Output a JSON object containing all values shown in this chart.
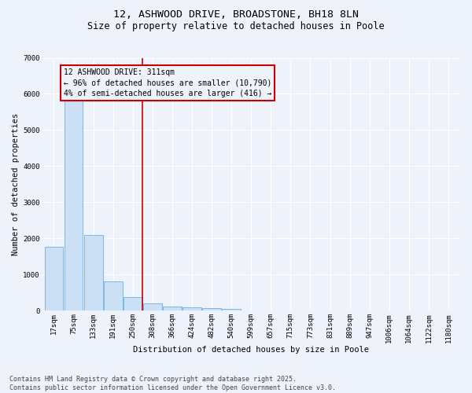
{
  "title": "12, ASHWOOD DRIVE, BROADSTONE, BH18 8LN",
  "subtitle": "Size of property relative to detached houses in Poole",
  "xlabel": "Distribution of detached houses by size in Poole",
  "ylabel": "Number of detached properties",
  "categories": [
    "17sqm",
    "75sqm",
    "133sqm",
    "191sqm",
    "250sqm",
    "308sqm",
    "366sqm",
    "424sqm",
    "482sqm",
    "540sqm",
    "599sqm",
    "657sqm",
    "715sqm",
    "773sqm",
    "831sqm",
    "889sqm",
    "947sqm",
    "1006sqm",
    "1064sqm",
    "1122sqm",
    "1180sqm"
  ],
  "values": [
    1780,
    5820,
    2100,
    820,
    380,
    210,
    120,
    90,
    80,
    55,
    0,
    0,
    0,
    0,
    0,
    0,
    0,
    0,
    0,
    0,
    0
  ],
  "bar_color": "#cce0f5",
  "bar_edge_color": "#7ab8e8",
  "vline_x": 4.5,
  "vline_color": "#cc0000",
  "annotation_text": "12 ASHWOOD DRIVE: 311sqm\n← 96% of detached houses are smaller (10,790)\n4% of semi-detached houses are larger (416) →",
  "annotation_box_color": "#cc0000",
  "ylim": [
    0,
    7000
  ],
  "yticks": [
    0,
    1000,
    2000,
    3000,
    4000,
    5000,
    6000,
    7000
  ],
  "bg_color": "#eef2fb",
  "grid_color": "#ffffff",
  "footer": "Contains HM Land Registry data © Crown copyright and database right 2025.\nContains public sector information licensed under the Open Government Licence v3.0.",
  "title_fontsize": 9.5,
  "subtitle_fontsize": 8.5,
  "axis_label_fontsize": 7.5,
  "tick_fontsize": 6.5,
  "annotation_fontsize": 7,
  "footer_fontsize": 6
}
